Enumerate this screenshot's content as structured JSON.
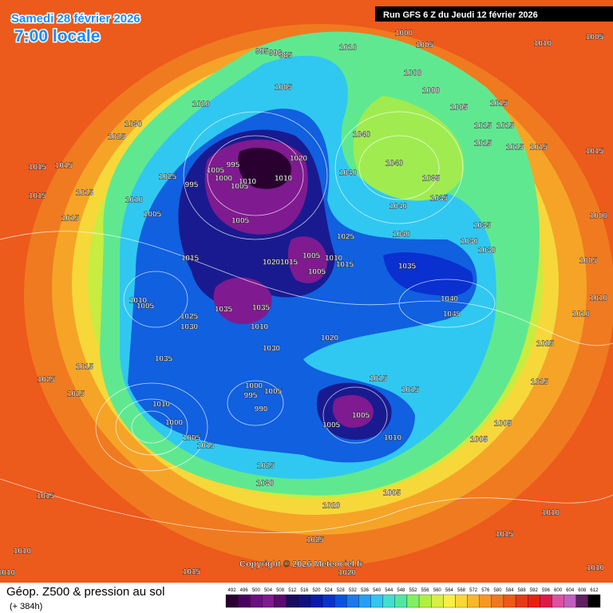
{
  "header": {
    "date": "Samedi 28 février 2026",
    "time": "7:00 locale",
    "run": "Run GFS 6 Z du Jeudi 12 février 2026"
  },
  "footer": {
    "title": "Géop. Z500 & pression au sol",
    "lead": "(+ 384h)",
    "copyright": "Copyright © 2026 Meteociel.fr"
  },
  "colorbar": {
    "labels": [
      492,
      496,
      500,
      504,
      508,
      512,
      516,
      520,
      524,
      528,
      532,
      536,
      540,
      544,
      548,
      552,
      556,
      560,
      564,
      568,
      572,
      576,
      580,
      584,
      588,
      592,
      596,
      600,
      604,
      608,
      612
    ],
    "colors": [
      "#2a0030",
      "#4a0060",
      "#6a1080",
      "#801a90",
      "#5a0a70",
      "#1a0a60",
      "#101080",
      "#0a1ab0",
      "#0a30d0",
      "#0a50e8",
      "#1a78f0",
      "#20a0f8",
      "#30c8f0",
      "#40e0d0",
      "#50e8a0",
      "#80f060",
      "#b0f040",
      "#d8f040",
      "#f8f040",
      "#f8d830",
      "#f8b828",
      "#f89820",
      "#f07820",
      "#f05818",
      "#e83818",
      "#e82010",
      "#e01848",
      "#e050a0",
      "#c060c0",
      "#602060",
      "#000000"
    ]
  },
  "pressure_labels": [
    1000,
    1010,
    1005,
    1005,
    995,
    990,
    985,
    1010,
    1000,
    1000,
    1005,
    1015,
    1020,
    1005,
    1030,
    1025,
    1015,
    1015,
    1040,
    1015,
    1015,
    1015,
    1015,
    1020,
    1040,
    1015,
    1015,
    1005,
    995,
    1000,
    995,
    1005,
    1010,
    1010,
    1025,
    1040,
    1035,
    1015,
    1015,
    1010,
    1040,
    1035,
    1005,
    1015,
    1005,
    1000,
    1035,
    1025,
    1040,
    1030,
    1030,
    1005,
    1010,
    1015,
    1020,
    1015,
    1015,
    1035,
    1005,
    1005,
    1010,
    1005,
    1035,
    1035,
    1040,
    1010,
    1025,
    1045,
    1030,
    1010,
    1010,
    1020,
    1025,
    1035,
    1030,
    1015,
    1025,
    1015,
    1000,
    995,
    1005,
    1015,
    1025,
    1015,
    990,
    1005,
    1010,
    1000,
    1005,
    1005,
    1010,
    1005,
    1015,
    1005,
    1025,
    1030,
    1015,
    1020,
    1005,
    1025,
    1010,
    1020,
    1010,
    1015,
    1010,
    1010,
    1015
  ]
}
